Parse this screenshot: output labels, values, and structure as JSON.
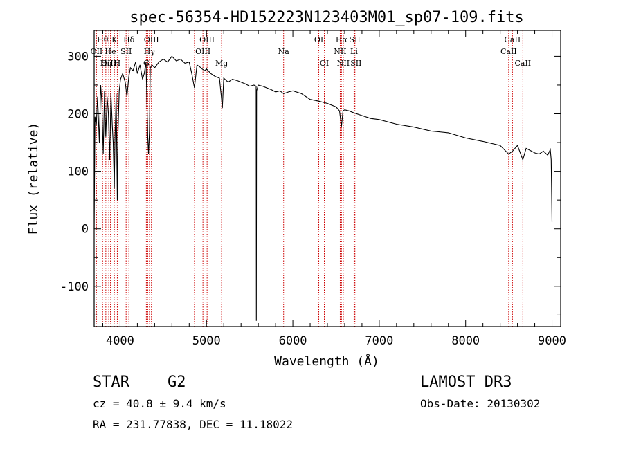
{
  "chart_data": {
    "type": "line",
    "title": "spec-56354-HD152223N123403M01_sp07-109.fits",
    "xlabel": "Wavelength (Å)",
    "ylabel": "Flux (relative)",
    "xlim": [
      3700,
      9100
    ],
    "ylim": [
      -170,
      345
    ],
    "xticks": [
      4000,
      5000,
      6000,
      7000,
      8000,
      9000
    ],
    "yticks": [
      -100,
      0,
      100,
      200,
      300
    ],
    "series": [
      {
        "name": "spectrum",
        "x": [
          3700,
          3710,
          3725,
          3740,
          3760,
          3775,
          3790,
          3805,
          3820,
          3835,
          3850,
          3865,
          3880,
          3895,
          3910,
          3920,
          3933,
          3940,
          3955,
          3968,
          3975,
          3990,
          4005,
          4030,
          4060,
          4080,
          4101,
          4120,
          4150,
          4180,
          4200,
          4230,
          4260,
          4280,
          4300,
          4320,
          4330,
          4340,
          4350,
          4370,
          4400,
          4450,
          4500,
          4550,
          4600,
          4650,
          4700,
          4750,
          4800,
          4830,
          4861,
          4890,
          4920,
          4950,
          4980,
          5000,
          5050,
          5100,
          5150,
          5172,
          5184,
          5200,
          5250,
          5300,
          5350,
          5400,
          5450,
          5500,
          5550,
          5575,
          5577,
          5580,
          5600,
          5650,
          5700,
          5750,
          5800,
          5850,
          5893,
          5950,
          6000,
          6100,
          6200,
          6300,
          6400,
          6500,
          6540,
          6563,
          6580,
          6600,
          6650,
          6700,
          6800,
          6900,
          7000,
          7200,
          7400,
          7600,
          7800,
          8000,
          8200,
          8400,
          8498,
          8542,
          8600,
          8662,
          8700,
          8800,
          8850,
          8900,
          8950,
          8980,
          8990,
          9000
        ],
        "y": [
          0,
          195,
          180,
          230,
          150,
          250,
          220,
          130,
          240,
          160,
          230,
          200,
          120,
          235,
          180,
          150,
          70,
          150,
          235,
          50,
          160,
          240,
          260,
          270,
          255,
          230,
          265,
          280,
          275,
          290,
          270,
          285,
          260,
          270,
          290,
          160,
          130,
          170,
          280,
          285,
          280,
          290,
          295,
          290,
          300,
          292,
          295,
          288,
          290,
          270,
          245,
          285,
          282,
          278,
          275,
          278,
          270,
          265,
          262,
          230,
          210,
          262,
          255,
          260,
          258,
          255,
          252,
          248,
          250,
          248,
          -160,
          240,
          250,
          248,
          245,
          242,
          238,
          240,
          235,
          238,
          240,
          235,
          225,
          222,
          218,
          212,
          205,
          178,
          205,
          207,
          205,
          202,
          197,
          192,
          190,
          182,
          177,
          170,
          167,
          158,
          152,
          145,
          130,
          135,
          145,
          120,
          140,
          132,
          130,
          135,
          128,
          138,
          120,
          12
        ]
      }
    ],
    "line_labels": [
      {
        "label": "Hθ",
        "x": 3798,
        "row": 1,
        "line_x": [
          3798
        ]
      },
      {
        "label": "K",
        "x": 3934,
        "row": 1,
        "line_x": [
          3934
        ]
      },
      {
        "label": "Hδ",
        "x": 4102,
        "row": 1,
        "line_x": [
          4102
        ]
      },
      {
        "label": "OIII",
        "x": 4363,
        "row": 1,
        "line_x": [
          4320,
          4363
        ]
      },
      {
        "label": "OIII",
        "x": 5007,
        "row": 1,
        "line_x": [
          4959,
          5007
        ]
      },
      {
        "label": "OI",
        "x": 6300,
        "row": 1,
        "line_x": [
          6300
        ]
      },
      {
        "label": "Hα",
        "x": 6563,
        "row": 1,
        "line_x": [
          6563
        ]
      },
      {
        "label": "SII",
        "x": 6717,
        "row": 1,
        "line_x": [
          6717
        ]
      },
      {
        "label": "CaII",
        "x": 8542,
        "row": 1,
        "line_x": [
          8542
        ]
      },
      {
        "label": "OII",
        "x": 3727,
        "row": 2,
        "line_x": [
          3727
        ]
      },
      {
        "label": "He",
        "x": 3889,
        "row": 2,
        "line_x": [
          3889
        ]
      },
      {
        "label": "SII",
        "x": 4070,
        "row": 2,
        "line_x": [
          4070
        ]
      },
      {
        "label": "Hγ",
        "x": 4340,
        "row": 2,
        "line_x": [
          4340
        ]
      },
      {
        "label": "OIII",
        "x": 4959,
        "row": 2,
        "line_x": [
          4861
        ]
      },
      {
        "label": "Na",
        "x": 5893,
        "row": 2,
        "line_x": [
          5893
        ]
      },
      {
        "label": "NII",
        "x": 6548,
        "row": 2,
        "line_x": [
          6548
        ]
      },
      {
        "label": "Li",
        "x": 6708,
        "row": 2,
        "line_x": [
          6708
        ]
      },
      {
        "label": "CaII",
        "x": 8498,
        "row": 2,
        "line_x": [
          8498
        ]
      },
      {
        "label": "OIII",
        "x": 3869,
        "row": 3,
        "line_x": [
          3869
        ]
      },
      {
        "label": "Hη",
        "x": 3835,
        "row": 3,
        "line_x": [
          3835
        ]
      },
      {
        "label": "H",
        "x": 3968,
        "row": 3,
        "line_x": [
          3968
        ]
      },
      {
        "label": "G",
        "x": 4304,
        "row": 3,
        "line_x": [
          4304
        ]
      },
      {
        "label": "Mg",
        "x": 5175,
        "row": 3,
        "line_x": [
          5175
        ]
      },
      {
        "label": "OI",
        "x": 6364,
        "row": 3,
        "line_x": [
          6364
        ]
      },
      {
        "label": "NII",
        "x": 6584,
        "row": 3,
        "line_x": [
          6584
        ]
      },
      {
        "label": "SII",
        "x": 6731,
        "row": 3,
        "line_x": [
          6731
        ]
      },
      {
        "label": "CaII",
        "x": 8662,
        "row": 3,
        "line_x": [
          8662
        ]
      }
    ],
    "line_color": "#000000",
    "marker_color": "#cc0000"
  },
  "info": {
    "object_class": "STAR",
    "subclass": "G2",
    "survey": "LAMOST DR3",
    "redshift": "cz = 40.8 ± 9.4 km/s",
    "obs_date": "Obs-Date: 20130302",
    "coords": "RA = 231.77838, DEC =  11.18022"
  }
}
